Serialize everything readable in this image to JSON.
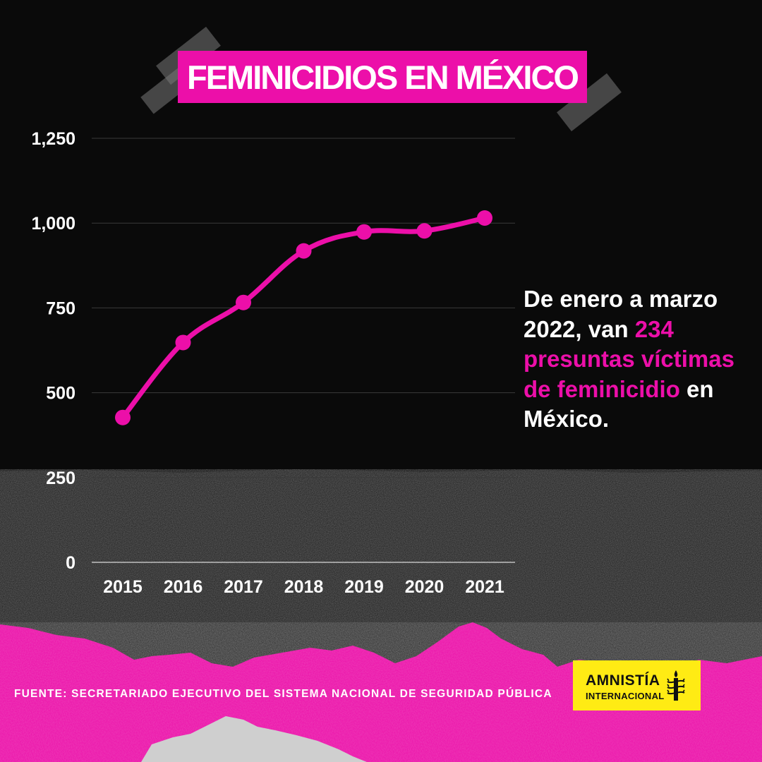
{
  "title": "FEMINICIDIOS EN MÉXICO",
  "callout": {
    "part1": "De enero a marzo 2022, van ",
    "highlight": "234 presuntas víctimas de feminicidio",
    "part2": " en México."
  },
  "source": "FUENTE: SECRETARIADO EJECUTIVO DEL SISTEMA NACIONAL DE SEGURIDAD PÚBLICA",
  "logo": {
    "line1": "AMNISTÍA",
    "line2": "INTERNACIONAL",
    "icon": "candle-barbed-wire-icon"
  },
  "colors": {
    "accent": "#ec0fa9",
    "background": "#0a0a0a",
    "logo_bg": "#ffeb14",
    "text": "#ffffff"
  },
  "chart_data": {
    "type": "line",
    "categories": [
      "2015",
      "2016",
      "2017",
      "2018",
      "2019",
      "2020",
      "2021"
    ],
    "values": [
      427,
      648,
      766,
      918,
      974,
      977,
      1015
    ],
    "ylim": [
      0,
      1250
    ],
    "yticks": [
      0,
      250,
      500,
      750,
      1000,
      1250
    ],
    "ytick_labels": [
      "0",
      "250",
      "500",
      "750",
      "1,000",
      "1,250"
    ],
    "grid": true,
    "color": "#ec0fa9"
  }
}
